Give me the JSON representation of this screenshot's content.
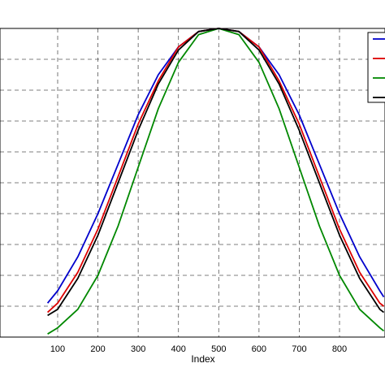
{
  "chart_data": {
    "type": "line",
    "title": "",
    "xlabel": "Index",
    "ylabel": "",
    "xlim": [
      75,
      910
    ],
    "ylim": [
      0.0,
      1.0
    ],
    "x_ticks": [
      100,
      200,
      300,
      400,
      500,
      600,
      700,
      800
    ],
    "grid": true,
    "grid_style": "dashed",
    "legend_placement": "top-right",
    "series": [
      {
        "color": "#0000cc",
        "x": [
          75,
          100,
          150,
          200,
          250,
          300,
          350,
          400,
          450,
          500,
          550,
          600,
          650,
          700,
          750,
          800,
          850,
          900,
          910
        ],
        "y": [
          0.11,
          0.15,
          0.26,
          0.4,
          0.56,
          0.72,
          0.85,
          0.94,
          0.99,
          1.0,
          0.99,
          0.94,
          0.85,
          0.72,
          0.56,
          0.4,
          0.26,
          0.15,
          0.13
        ]
      },
      {
        "color": "#dd0000",
        "x": [
          75,
          100,
          150,
          200,
          250,
          300,
          350,
          400,
          450,
          500,
          550,
          600,
          650,
          700,
          750,
          800,
          850,
          900,
          910
        ],
        "y": [
          0.08,
          0.11,
          0.21,
          0.35,
          0.52,
          0.69,
          0.83,
          0.94,
          0.99,
          1.0,
          0.99,
          0.94,
          0.83,
          0.69,
          0.52,
          0.35,
          0.21,
          0.11,
          0.1
        ]
      },
      {
        "color": "#008800",
        "x": [
          75,
          100,
          150,
          200,
          250,
          300,
          350,
          400,
          450,
          500,
          550,
          600,
          650,
          700,
          750,
          800,
          850,
          900,
          910
        ],
        "y": [
          0.01,
          0.03,
          0.09,
          0.2,
          0.36,
          0.55,
          0.74,
          0.89,
          0.98,
          1.0,
          0.98,
          0.89,
          0.74,
          0.55,
          0.36,
          0.2,
          0.09,
          0.03,
          0.02
        ]
      },
      {
        "color": "#000000",
        "x": [
          75,
          100,
          150,
          200,
          250,
          300,
          350,
          400,
          450,
          500,
          550,
          600,
          650,
          700,
          750,
          800,
          850,
          900,
          910
        ],
        "y": [
          0.07,
          0.09,
          0.19,
          0.33,
          0.5,
          0.67,
          0.82,
          0.93,
          0.99,
          1.0,
          0.99,
          0.93,
          0.82,
          0.67,
          0.5,
          0.33,
          0.19,
          0.09,
          0.08
        ]
      }
    ]
  }
}
